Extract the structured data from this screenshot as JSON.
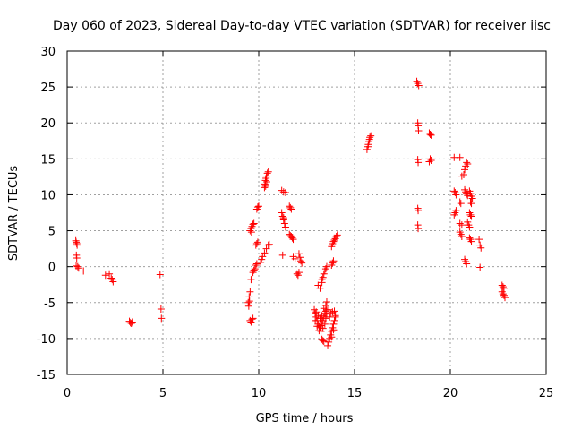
{
  "chart_data": {
    "type": "scatter",
    "title": "Day 060 of 2023, Sidereal Day-to-day VTEC variation (SDTVAR) for receiver iisc",
    "xlabel": "GPS time / hours",
    "ylabel": "SDTVAR / TECUs",
    "xlim": [
      0,
      25
    ],
    "ylim": [
      -15,
      30
    ],
    "xticks": [
      "0",
      "5",
      "10",
      "15",
      "20",
      "25"
    ],
    "yticks": [
      "-15",
      "-10",
      "-5",
      "0",
      "5",
      "10",
      "15",
      "20",
      "25",
      "30"
    ],
    "grid": true,
    "marker": "+",
    "marker_color": "#ff0000",
    "series": [
      {
        "name": "SDTVAR",
        "points": [
          [
            0.45,
            3.6
          ],
          [
            0.47,
            3.4
          ],
          [
            0.5,
            3.2
          ],
          [
            0.52,
            3.0
          ],
          [
            0.48,
            1.6
          ],
          [
            0.5,
            1.2
          ],
          [
            0.47,
            0.1
          ],
          [
            0.55,
            0.0
          ],
          [
            0.6,
            -0.2
          ],
          [
            0.85,
            -0.6
          ],
          [
            2.0,
            -1.2
          ],
          [
            2.2,
            -1.0
          ],
          [
            2.3,
            -1.6
          ],
          [
            2.35,
            -1.8
          ],
          [
            2.4,
            -2.1
          ],
          [
            3.25,
            -7.6
          ],
          [
            3.3,
            -7.8
          ],
          [
            3.35,
            -7.9
          ],
          [
            3.4,
            -7.7
          ],
          [
            4.85,
            -1.1
          ],
          [
            4.9,
            -5.9
          ],
          [
            4.92,
            -7.2
          ],
          [
            9.45,
            -5.0
          ],
          [
            9.5,
            -4.2
          ],
          [
            9.55,
            -3.5
          ],
          [
            9.48,
            -5.5
          ],
          [
            9.52,
            -4.8
          ],
          [
            9.55,
            -7.5
          ],
          [
            9.6,
            -7.7
          ],
          [
            9.65,
            -7.3
          ],
          [
            9.7,
            -7.2
          ],
          [
            9.55,
            5.0
          ],
          [
            9.6,
            5.3
          ],
          [
            9.65,
            5.6
          ],
          [
            9.7,
            5.9
          ],
          [
            9.75,
            6.0
          ],
          [
            9.62,
            4.8
          ],
          [
            9.6,
            -1.8
          ],
          [
            9.7,
            -0.8
          ],
          [
            9.75,
            -0.5
          ],
          [
            9.8,
            -0.3
          ],
          [
            9.85,
            0.2
          ],
          [
            9.9,
            0.4
          ],
          [
            9.85,
            3.0
          ],
          [
            9.9,
            3.2
          ],
          [
            9.95,
            3.4
          ],
          [
            9.9,
            8.0
          ],
          [
            9.95,
            8.3
          ],
          [
            10.0,
            8.4
          ],
          [
            10.1,
            0.6
          ],
          [
            10.15,
            1.0
          ],
          [
            10.2,
            1.4
          ],
          [
            10.3,
            1.9
          ],
          [
            10.4,
            2.5
          ],
          [
            10.5,
            3.0
          ],
          [
            10.55,
            3.1
          ],
          [
            10.3,
            11.0
          ],
          [
            10.32,
            11.5
          ],
          [
            10.35,
            12.0
          ],
          [
            10.38,
            12.3
          ],
          [
            10.4,
            12.6
          ],
          [
            10.45,
            13.0
          ],
          [
            10.5,
            13.2
          ],
          [
            10.42,
            11.8
          ],
          [
            10.36,
            11.2
          ],
          [
            11.2,
            7.5
          ],
          [
            11.25,
            7.0
          ],
          [
            11.3,
            6.5
          ],
          [
            11.35,
            6.0
          ],
          [
            11.4,
            5.5
          ],
          [
            11.3,
            6.8
          ],
          [
            11.2,
            10.6
          ],
          [
            11.3,
            10.4
          ],
          [
            11.4,
            10.3
          ],
          [
            11.25,
            1.6
          ],
          [
            11.6,
            8.4
          ],
          [
            11.65,
            8.2
          ],
          [
            11.7,
            8.0
          ],
          [
            11.6,
            4.5
          ],
          [
            11.7,
            4.2
          ],
          [
            11.75,
            4.0
          ],
          [
            11.8,
            3.8
          ],
          [
            11.65,
            4.3
          ],
          [
            11.8,
            1.4
          ],
          [
            11.9,
            1.1
          ],
          [
            12.0,
            -1.0
          ],
          [
            12.05,
            -1.2
          ],
          [
            12.1,
            -0.8
          ],
          [
            12.1,
            1.8
          ],
          [
            12.15,
            1.3
          ],
          [
            12.2,
            0.8
          ],
          [
            12.25,
            0.5
          ],
          [
            12.9,
            -6.0
          ],
          [
            12.95,
            -6.5
          ],
          [
            13.0,
            -7.0
          ],
          [
            13.05,
            -7.5
          ],
          [
            13.1,
            -8.0
          ],
          [
            13.15,
            -8.3
          ],
          [
            13.2,
            -8.5
          ],
          [
            13.25,
            -8.2
          ],
          [
            13.3,
            -7.8
          ],
          [
            13.35,
            -7.5
          ],
          [
            13.4,
            -7.0
          ],
          [
            13.45,
            -6.5
          ],
          [
            13.5,
            -6.2
          ],
          [
            13.55,
            -6.0
          ],
          [
            13.0,
            -6.3
          ],
          [
            13.1,
            -6.8
          ],
          [
            13.2,
            -7.2
          ],
          [
            13.3,
            -6.8
          ],
          [
            12.95,
            -7.5
          ],
          [
            13.05,
            -8.3
          ],
          [
            13.15,
            -8.9
          ],
          [
            13.25,
            -9.0
          ],
          [
            13.35,
            -8.6
          ],
          [
            13.45,
            -8.0
          ],
          [
            13.5,
            -7.2
          ],
          [
            13.55,
            -6.6
          ],
          [
            13.4,
            -5.8
          ],
          [
            13.5,
            -5.4
          ],
          [
            13.55,
            -4.9
          ],
          [
            13.1,
            -2.6
          ],
          [
            13.2,
            -3.0
          ],
          [
            13.3,
            -2.2
          ],
          [
            13.3,
            -1.8
          ],
          [
            13.35,
            -1.5
          ],
          [
            13.4,
            -1.0
          ],
          [
            13.45,
            -0.6
          ],
          [
            13.5,
            -0.3
          ],
          [
            13.55,
            0.0
          ],
          [
            13.3,
            -10.1
          ],
          [
            13.35,
            -10.3
          ],
          [
            13.4,
            -10.4
          ],
          [
            13.6,
            -11.0
          ],
          [
            13.65,
            -10.5
          ],
          [
            13.7,
            -10.0
          ],
          [
            13.75,
            -9.5
          ],
          [
            13.8,
            -9.0
          ],
          [
            13.85,
            -8.5
          ],
          [
            13.9,
            -8.0
          ],
          [
            13.95,
            -7.5
          ],
          [
            14.0,
            -7.0
          ],
          [
            13.75,
            -6.5
          ],
          [
            13.85,
            -6.3
          ],
          [
            13.95,
            -6.2
          ],
          [
            14.0,
            -6.8
          ],
          [
            13.8,
            -9.8
          ],
          [
            13.9,
            -8.8
          ],
          [
            13.7,
            -7.0
          ],
          [
            13.65,
            -6.0
          ],
          [
            13.8,
            0.2
          ],
          [
            13.85,
            0.5
          ],
          [
            13.9,
            0.8
          ],
          [
            13.8,
            2.8
          ],
          [
            13.85,
            3.2
          ],
          [
            13.9,
            3.5
          ],
          [
            13.95,
            3.7
          ],
          [
            14.0,
            3.9
          ],
          [
            14.05,
            4.2
          ],
          [
            14.1,
            4.4
          ],
          [
            15.65,
            16.3
          ],
          [
            15.7,
            16.7
          ],
          [
            15.72,
            17.0
          ],
          [
            15.75,
            17.4
          ],
          [
            15.78,
            17.7
          ],
          [
            15.8,
            18.0
          ],
          [
            15.85,
            18.2
          ],
          [
            18.25,
            25.8
          ],
          [
            18.3,
            25.5
          ],
          [
            18.35,
            25.2
          ],
          [
            18.3,
            20.0
          ],
          [
            18.32,
            19.6
          ],
          [
            18.34,
            18.9
          ],
          [
            18.3,
            14.9
          ],
          [
            18.32,
            14.5
          ],
          [
            18.3,
            8.1
          ],
          [
            18.32,
            7.8
          ],
          [
            18.3,
            5.8
          ],
          [
            18.32,
            5.3
          ],
          [
            18.9,
            18.6
          ],
          [
            18.95,
            18.4
          ],
          [
            19.0,
            18.3
          ],
          [
            18.95,
            15.0
          ],
          [
            19.0,
            14.8
          ],
          [
            18.9,
            14.6
          ],
          [
            20.2,
            15.2
          ],
          [
            20.5,
            15.2
          ],
          [
            20.2,
            10.5
          ],
          [
            20.25,
            10.3
          ],
          [
            20.3,
            10.0
          ],
          [
            20.2,
            7.2
          ],
          [
            20.25,
            7.5
          ],
          [
            20.3,
            7.8
          ],
          [
            20.5,
            9.0
          ],
          [
            20.55,
            8.8
          ],
          [
            20.5,
            6.0
          ],
          [
            20.6,
            5.8
          ],
          [
            20.5,
            4.8
          ],
          [
            20.55,
            4.5
          ],
          [
            20.6,
            4.2
          ],
          [
            20.6,
            12.6
          ],
          [
            20.7,
            12.8
          ],
          [
            20.75,
            13.5
          ],
          [
            20.8,
            14.0
          ],
          [
            20.85,
            14.5
          ],
          [
            20.9,
            14.3
          ],
          [
            20.75,
            10.7
          ],
          [
            20.8,
            10.4
          ],
          [
            20.85,
            10.1
          ],
          [
            20.9,
            9.9
          ],
          [
            20.75,
            1.0
          ],
          [
            20.8,
            0.7
          ],
          [
            20.85,
            0.4
          ],
          [
            20.9,
            6.2
          ],
          [
            20.95,
            5.8
          ],
          [
            21.0,
            5.5
          ],
          [
            21.0,
            10.5
          ],
          [
            21.05,
            10.2
          ],
          [
            21.1,
            9.8
          ],
          [
            21.15,
            9.5
          ],
          [
            21.05,
            9.0
          ],
          [
            21.1,
            8.8
          ],
          [
            21.0,
            7.5
          ],
          [
            21.05,
            7.2
          ],
          [
            21.1,
            7.0
          ],
          [
            21.0,
            4.0
          ],
          [
            21.05,
            3.8
          ],
          [
            21.1,
            3.5
          ],
          [
            21.5,
            3.8
          ],
          [
            21.55,
            3.0
          ],
          [
            21.6,
            2.6
          ],
          [
            21.55,
            -0.1
          ],
          [
            22.7,
            -2.6
          ],
          [
            22.75,
            -2.8
          ],
          [
            22.8,
            -3.0
          ],
          [
            22.7,
            -3.5
          ],
          [
            22.75,
            -3.8
          ],
          [
            22.8,
            -4.0
          ],
          [
            22.85,
            -4.3
          ]
        ]
      }
    ]
  }
}
